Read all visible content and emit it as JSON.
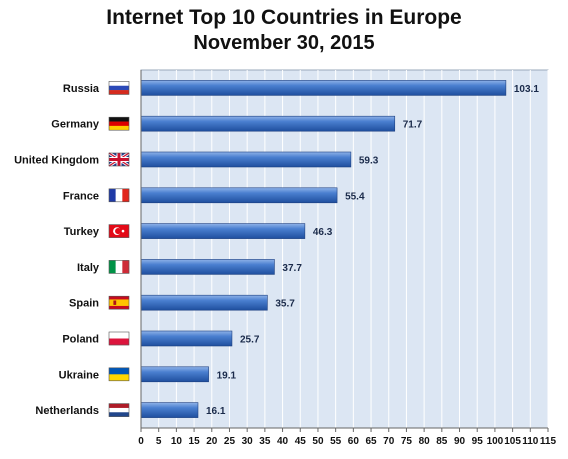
{
  "chart_data": {
    "type": "bar",
    "orientation": "horizontal",
    "title": "Internet Top 10 Countries in Europe",
    "subtitle": "November 30, 2015",
    "categories": [
      "Russia",
      "Germany",
      "United Kingdom",
      "France",
      "Turkey",
      "Italy",
      "Spain",
      "Poland",
      "Ukraine",
      "Netherlands"
    ],
    "values": [
      103.1,
      71.7,
      59.3,
      55.4,
      46.3,
      37.7,
      35.7,
      25.7,
      19.1,
      16.1
    ],
    "data_labels": [
      "103.1",
      "71.7",
      "59.3",
      "55.4",
      "46.3",
      "37.7",
      "35.7",
      "25.7",
      "19.1",
      "16.1"
    ],
    "xlim": [
      0,
      115
    ],
    "x_ticks": [
      "0",
      "5",
      "10",
      "15",
      "20",
      "25",
      "30",
      "35",
      "40",
      "45",
      "50",
      "55",
      "60",
      "65",
      "70",
      "75",
      "80",
      "85",
      "90",
      "95",
      "100",
      "105",
      "110",
      "115"
    ],
    "grid": true,
    "bar_color": "#3a6fc4",
    "plot_background": "#dce6f3",
    "flag_icons": [
      "russia-flag-icon",
      "germany-flag-icon",
      "uk-flag-icon",
      "france-flag-icon",
      "turkey-flag-icon",
      "italy-flag-icon",
      "spain-flag-icon",
      "poland-flag-icon",
      "ukraine-flag-icon",
      "netherlands-flag-icon"
    ]
  }
}
